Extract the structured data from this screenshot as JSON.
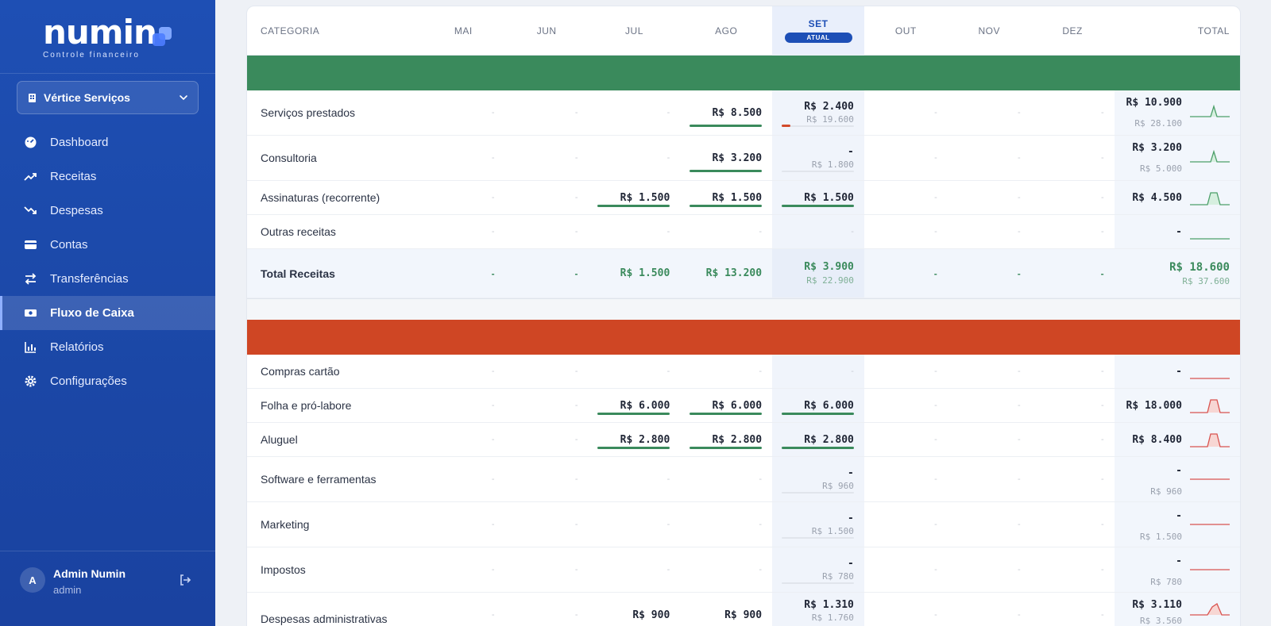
{
  "brand": {
    "name": "numin",
    "subtitle": "Controle financeiro"
  },
  "company": {
    "label": "Vértice Serviços"
  },
  "nav": [
    {
      "label": "Dashboard",
      "icon": "dashboard-icon"
    },
    {
      "label": "Receitas",
      "icon": "trending-up-icon"
    },
    {
      "label": "Despesas",
      "icon": "trending-down-icon"
    },
    {
      "label": "Contas",
      "icon": "wallet-icon"
    },
    {
      "label": "Transferências",
      "icon": "transfer-icon"
    },
    {
      "label": "Fluxo de Caixa",
      "icon": "cash-flow-icon",
      "active": true
    },
    {
      "label": "Relatórios",
      "icon": "bar-chart-icon"
    },
    {
      "label": "Configurações",
      "icon": "gear-icon"
    }
  ],
  "user": {
    "initial": "A",
    "name": "Admin Numin",
    "role": "admin"
  },
  "table": {
    "header": {
      "category": "CATEGORIA",
      "months": [
        "MAI",
        "JUN",
        "JUL",
        "AGO",
        "SET",
        "OUT",
        "NOV",
        "DEZ"
      ],
      "current_badge": "ATUAL",
      "total": "TOTAL"
    },
    "dash": "-",
    "income_rows": [
      {
        "name": "Serviços prestados",
        "mai": "-",
        "jun": "-",
        "jul": "-",
        "ago": "R$ 8.500",
        "set": "R$ 2.400",
        "set_sub": "R$ 19.600",
        "total": "R$ 10.900",
        "total_sub": "R$ 28.100"
      },
      {
        "name": "Consultoria",
        "mai": "-",
        "jun": "-",
        "jul": "-",
        "ago": "R$ 3.200",
        "set": "-",
        "set_sub": "R$ 1.800",
        "total": "R$ 3.200",
        "total_sub": "R$ 5.000"
      },
      {
        "name": "Assinaturas (recorrente)",
        "mai": "-",
        "jun": "-",
        "jul": "R$ 1.500",
        "ago": "R$ 1.500",
        "set": "R$ 1.500",
        "set_sub": "",
        "total": "R$ 4.500",
        "total_sub": ""
      },
      {
        "name": "Outras receitas",
        "mai": "-",
        "jun": "-",
        "jul": "-",
        "ago": "-",
        "set": "-",
        "set_sub": "",
        "total": "-",
        "total_sub": ""
      }
    ],
    "income_total": {
      "name": "Total Receitas",
      "mai": "-",
      "jun": "-",
      "jul": "R$ 1.500",
      "ago": "R$ 13.200",
      "set": "R$ 3.900",
      "set_sub": "R$ 22.900",
      "out": "-",
      "nov": "-",
      "dez": "-",
      "total": "R$ 18.600",
      "total_sub": "R$ 37.600"
    },
    "expense_rows": [
      {
        "name": "Compras cartão",
        "jul": "-",
        "ago": "-",
        "set": "-",
        "set_sub": "",
        "total": "-",
        "total_sub": ""
      },
      {
        "name": "Folha e pró-labore",
        "jul": "R$ 6.000",
        "ago": "R$ 6.000",
        "set": "R$ 6.000",
        "set_sub": "",
        "total": "R$ 18.000",
        "total_sub": ""
      },
      {
        "name": "Aluguel",
        "jul": "R$ 2.800",
        "ago": "R$ 2.800",
        "set": "R$ 2.800",
        "set_sub": "",
        "total": "R$ 8.400",
        "total_sub": ""
      },
      {
        "name": "Software e ferramentas",
        "jul": "-",
        "ago": "-",
        "set": "-",
        "set_sub": "R$ 960",
        "total": "-",
        "total_sub": "R$ 960"
      },
      {
        "name": "Marketing",
        "jul": "-",
        "ago": "-",
        "set": "-",
        "set_sub": "R$ 1.500",
        "total": "-",
        "total_sub": "R$ 1.500"
      },
      {
        "name": "Impostos",
        "jul": "-",
        "ago": "-",
        "set": "-",
        "set_sub": "R$ 780",
        "total": "-",
        "total_sub": "R$ 780"
      },
      {
        "name": "Despesas administrativas",
        "jul": "R$ 900",
        "ago": "R$ 900",
        "set": "R$ 1.310",
        "set_sub": "R$ 1.760",
        "total": "R$ 3.110",
        "total_sub": "R$ 3.560"
      }
    ]
  },
  "colors": {
    "sidebar": "#1e4fb4",
    "income_band": "#3a8a5c",
    "expense_band": "#cf4624",
    "accent": "#1d4fb6"
  }
}
